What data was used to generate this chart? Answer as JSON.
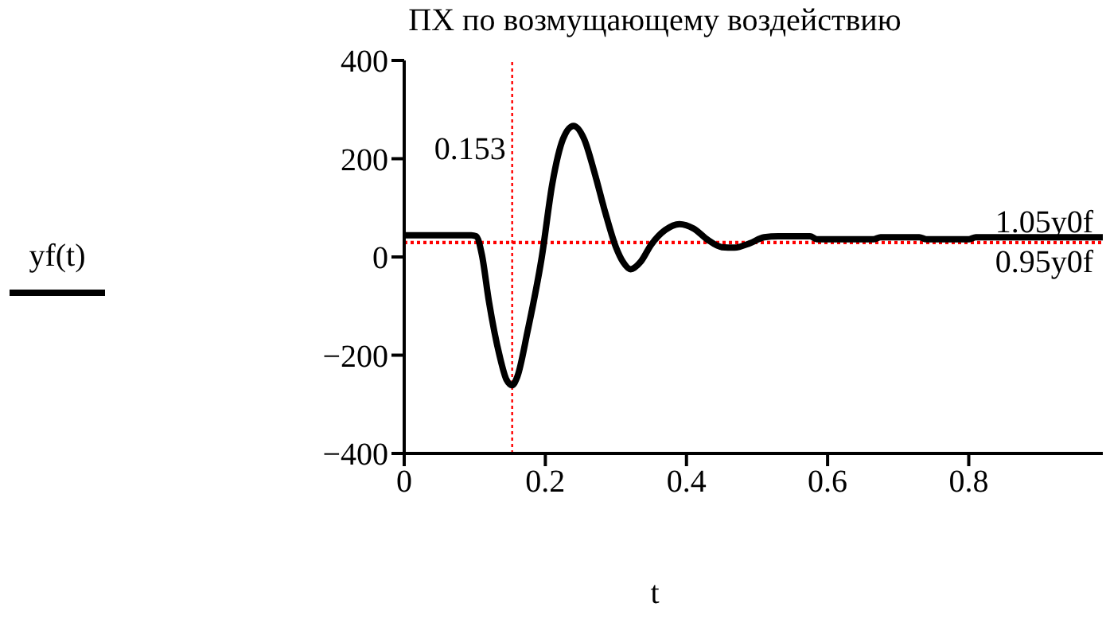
{
  "chart_data": {
    "type": "line",
    "title": "ПХ по возмущающему воздействию",
    "xlabel": "t",
    "legend": "left",
    "marker": "none",
    "line_style": "solid",
    "grid": false,
    "xlim": [
      0,
      0.99
    ],
    "xticks": [
      0,
      0.2,
      0.4,
      0.6,
      0.8
    ],
    "ylim": [
      -400,
      400
    ],
    "yticks": [
      -400,
      -200,
      0,
      200,
      400
    ],
    "series": [
      {
        "name": "yf(t)",
        "color": "#000000",
        "x": [
          0,
          0.05,
          0.095,
          0.102,
          0.11,
          0.12,
          0.135,
          0.145,
          0.153,
          0.16,
          0.175,
          0.195,
          0.21,
          0.225,
          0.24,
          0.255,
          0.27,
          0.285,
          0.3,
          0.31,
          0.321,
          0.335,
          0.35,
          0.37,
          0.39,
          0.41,
          0.43,
          0.45,
          0.468,
          0.49,
          0.51,
          0.53,
          0.575,
          0.585,
          0.665,
          0.675,
          0.73,
          0.74,
          0.8,
          0.81,
          0.99
        ],
        "values": [
          44,
          44,
          44,
          42,
          5,
          -90,
          -200,
          -250,
          -261,
          -245,
          -150,
          0,
          150,
          240,
          267,
          240,
          170,
          90,
          20,
          -10,
          -25,
          -10,
          25,
          55,
          67,
          58,
          35,
          20,
          19,
          28,
          40,
          42,
          42,
          36,
          36,
          40,
          40,
          36,
          36,
          40,
          40
        ]
      }
    ],
    "ref_lines": [
      {
        "axis": "x",
        "value": 0.153,
        "label": "0.153",
        "color": "#ff0000",
        "line_style": "dotted"
      },
      {
        "axis": "y",
        "value": 31,
        "label": "1.05y0f",
        "color": "#ff0000",
        "line_style": "dotted"
      },
      {
        "axis": "y",
        "value": 28,
        "label": "0.95y0f",
        "color": "#ff0000",
        "line_style": "dotted"
      }
    ]
  }
}
